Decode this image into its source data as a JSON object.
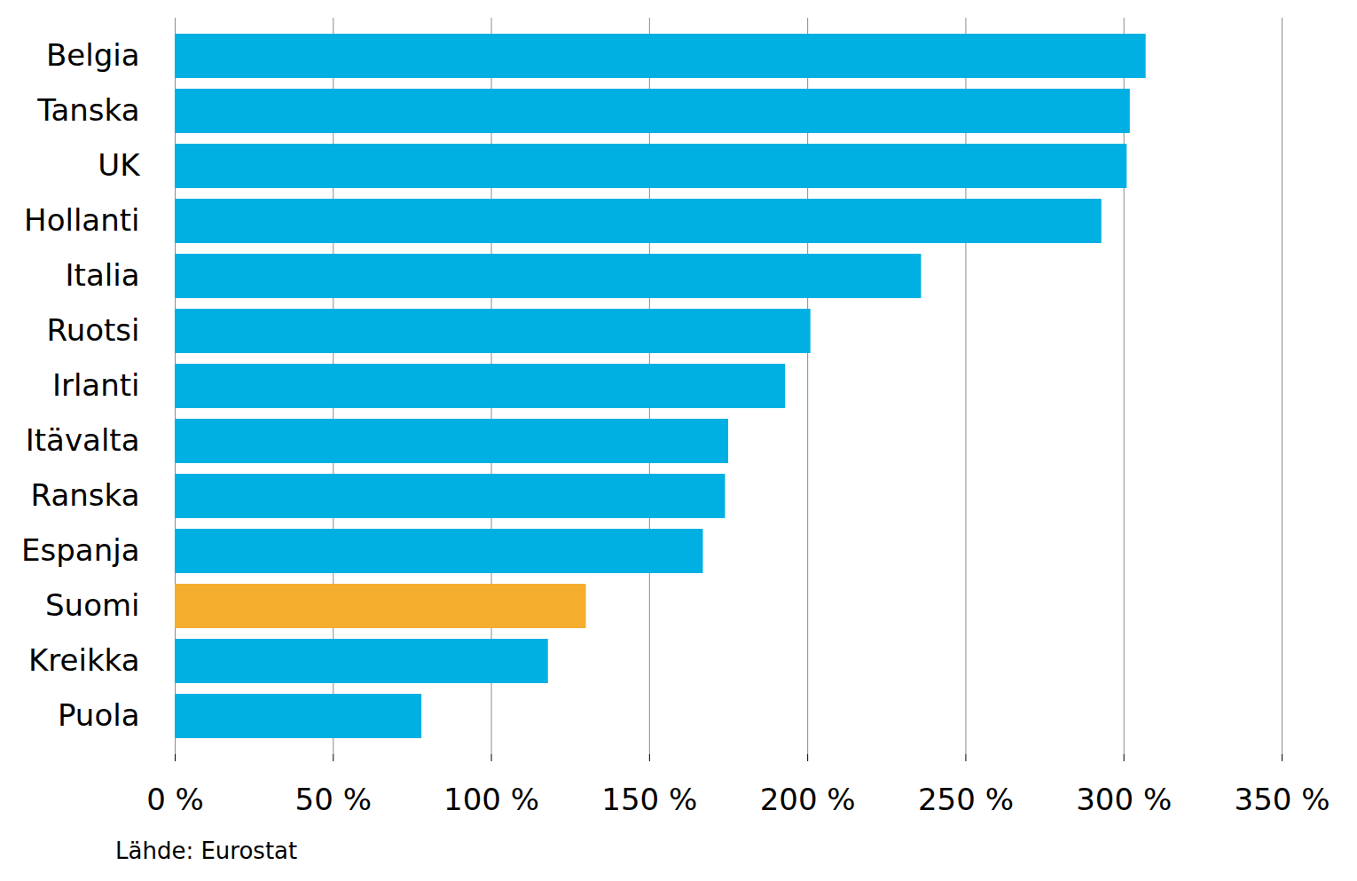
{
  "chart_data": {
    "type": "bar",
    "orientation": "horizontal",
    "caption": "Lähde: Eurostat",
    "categories": [
      "Belgia",
      "Tanska",
      "UK",
      "Hollanti",
      "Italia",
      "Ruotsi",
      "Irlanti",
      "Itävalta",
      "Ranska",
      "Espanja",
      "Suomi",
      "Kreikka",
      "Puola"
    ],
    "values": [
      307,
      302,
      301,
      293,
      236,
      201,
      193,
      175,
      174,
      167,
      130,
      118,
      78
    ],
    "colors": [
      "#00b0e2",
      "#00b0e2",
      "#00b0e2",
      "#00b0e2",
      "#00b0e2",
      "#00b0e2",
      "#00b0e2",
      "#00b0e2",
      "#00b0e2",
      "#00b0e2",
      "#f5ad2e",
      "#00b0e2",
      "#00b0e2"
    ],
    "xlim": [
      0,
      350
    ],
    "xticks": [
      {
        "value": 0,
        "label": "0 %"
      },
      {
        "value": 50,
        "label": "50 %"
      },
      {
        "value": 100,
        "label": "100 %"
      },
      {
        "value": 150,
        "label": "150 %"
      },
      {
        "value": 200,
        "label": "200 %"
      },
      {
        "value": 250,
        "label": "250 %"
      },
      {
        "value": 300,
        "label": "300 %"
      },
      {
        "value": 350,
        "label": "350 %"
      }
    ],
    "grid": true
  }
}
